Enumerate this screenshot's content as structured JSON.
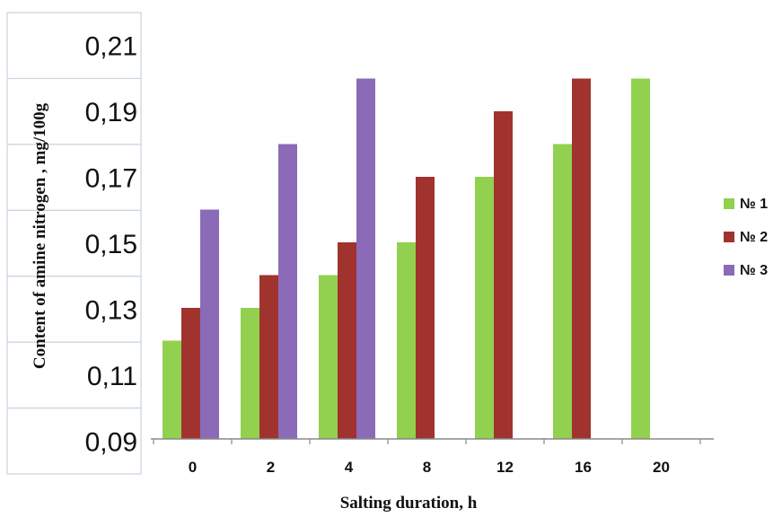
{
  "chart_data": {
    "type": "bar",
    "title": "",
    "xlabel": "Salting duration, h",
    "ylabel": "Content of amine nitrogen  , mg/100g",
    "categories": [
      "0",
      "2",
      "4",
      "8",
      "12",
      "16",
      "20"
    ],
    "yticks": [
      "0,09",
      "0,11",
      "0,13",
      "0,15",
      "0,17",
      "0,19",
      "0,21"
    ],
    "ylim": [
      0.09,
      0.21
    ],
    "grid": false,
    "legend_position": "right",
    "series": [
      {
        "name": "№ 1",
        "color": "#92d050",
        "values": [
          0.12,
          0.13,
          0.14,
          0.15,
          0.17,
          0.18,
          0.2
        ]
      },
      {
        "name": "№ 2",
        "color": "#a0332d",
        "values": [
          0.13,
          0.14,
          0.15,
          0.17,
          0.19,
          0.2,
          null
        ]
      },
      {
        "name": "№ 3",
        "color": "#8b6bb8",
        "values": [
          0.16,
          0.18,
          0.2,
          null,
          null,
          null,
          null
        ]
      }
    ]
  }
}
